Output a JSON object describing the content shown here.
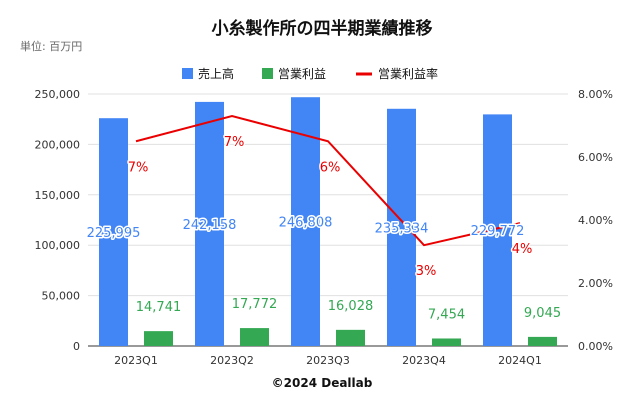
{
  "page": {
    "title": "小糸製作所の四半期業績推移",
    "unit": "単位: 百万円",
    "credit": "©2024 Deallab"
  },
  "colors": {
    "revenue": "#4285f4",
    "operating_profit": "#34a853",
    "margin": "#ea0000",
    "grid": "#e0e0e0"
  },
  "chart_data": {
    "type": "bar",
    "categories": [
      "2023Q1",
      "2023Q2",
      "2023Q3",
      "2023Q4",
      "2024Q1"
    ],
    "series": [
      {
        "name": "売上高",
        "type": "bar",
        "axis": "left",
        "values": [
          225995,
          242158,
          246808,
          235334,
          229772
        ],
        "labels": [
          "225,995",
          "242,158",
          "246,808",
          "235,334",
          "229,772"
        ]
      },
      {
        "name": "営業利益",
        "type": "bar",
        "axis": "left",
        "values": [
          14741,
          17772,
          16028,
          7454,
          9045
        ],
        "labels": [
          "14,741",
          "17,772",
          "16,028",
          "7,454",
          "9,045"
        ]
      },
      {
        "name": "営業利益率",
        "type": "line",
        "axis": "right",
        "values": [
          6.5,
          7.3,
          6.5,
          3.2,
          3.9
        ],
        "labels": [
          "7%",
          "7%",
          "6%",
          "3%",
          "4%"
        ]
      }
    ],
    "y_left": {
      "range": [
        0,
        250000
      ],
      "ticks": [
        0,
        50000,
        100000,
        150000,
        200000,
        250000
      ],
      "tick_labels": [
        "0",
        "50,000",
        "100,000",
        "150,000",
        "200,000",
        "250,000"
      ]
    },
    "y_right": {
      "range": [
        0,
        8
      ],
      "ticks": [
        0,
        2,
        4,
        6,
        8
      ],
      "tick_labels": [
        "0.00%",
        "2.00%",
        "4.00%",
        "6.00%",
        "8.00%"
      ]
    },
    "grid": true,
    "legend_position": "top"
  }
}
